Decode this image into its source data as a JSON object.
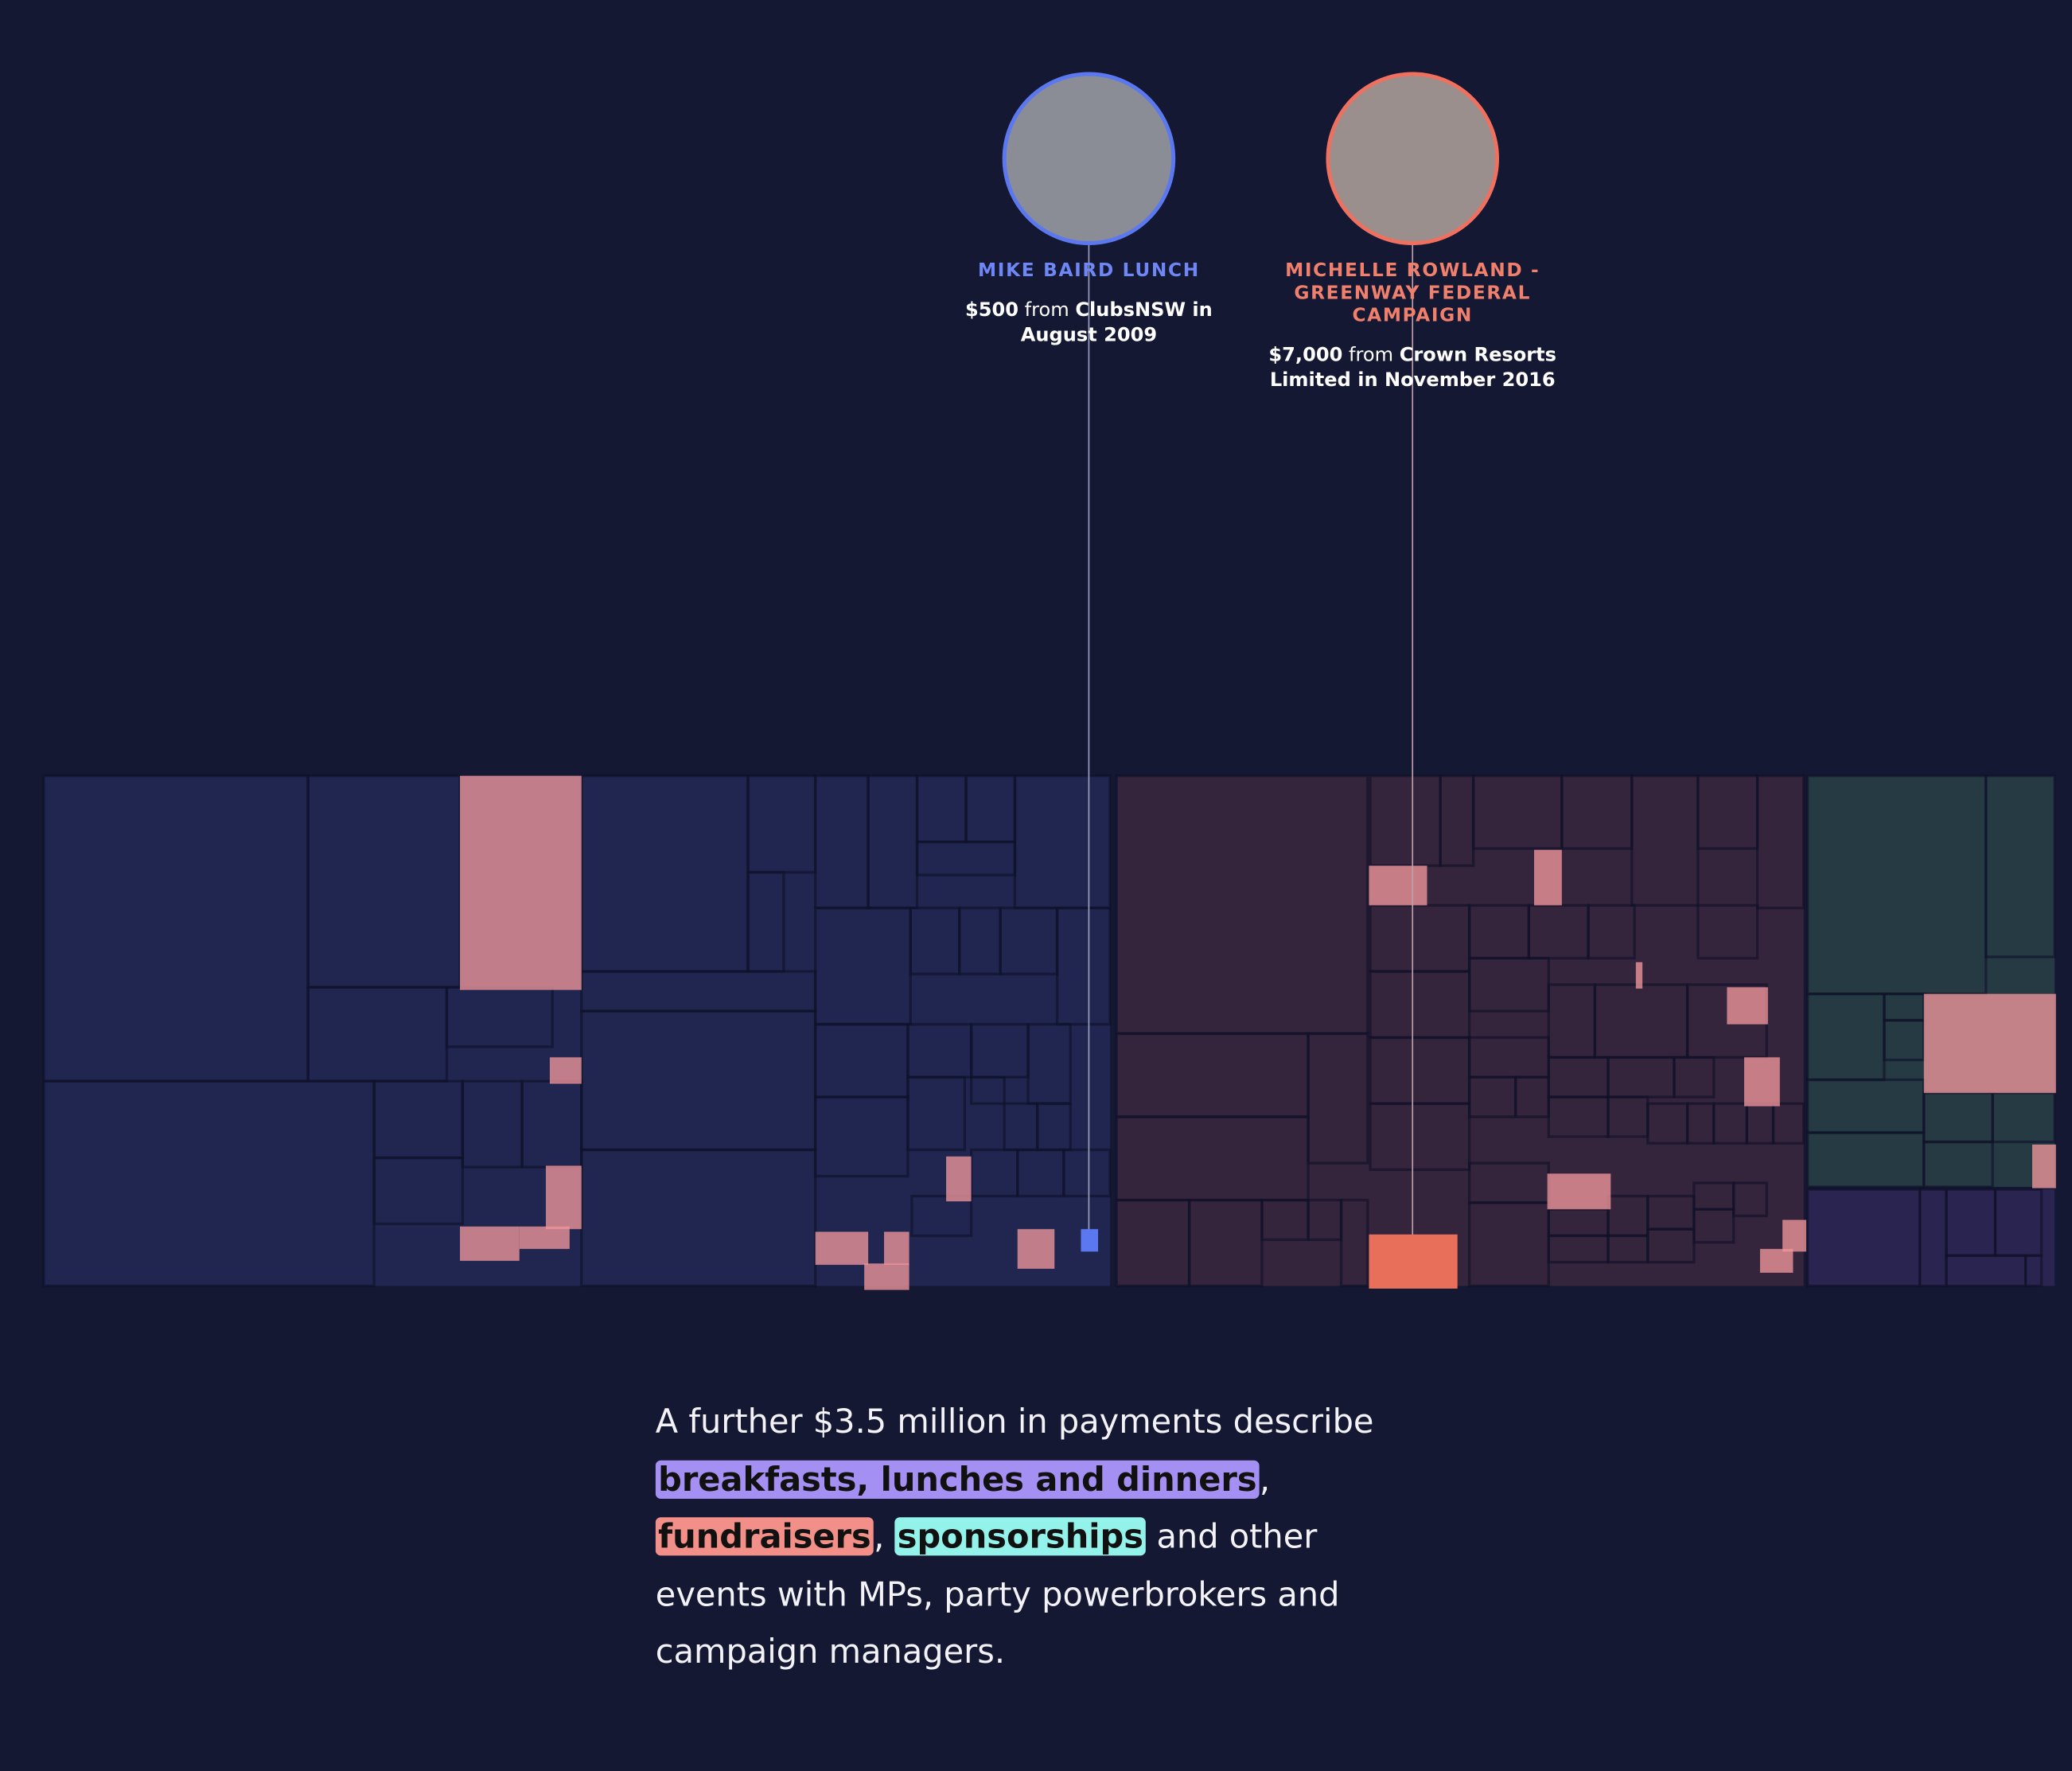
{
  "annotations": [
    {
      "title": "MIKE BAIRD LUNCH",
      "amount": "$500",
      "connector": "from",
      "source": "ClubsNSW in August 2009"
    },
    {
      "title": "MICHELLE ROWLAND - GREENWAY FEDERAL CAMPAIGN",
      "amount": "$7,000",
      "connector": "from",
      "source": "Crown Resorts Limited in November 2016"
    }
  ],
  "paragraph": [
    {
      "text": "A further $3.5 million in payments describe "
    },
    {
      "text": "breakfasts, lunches and dinners",
      "highlight": "#a48ff2"
    },
    {
      "text": ", "
    },
    {
      "text": "fundraisers",
      "highlight": "#f28f88"
    },
    {
      "text": ", "
    },
    {
      "text": "sponsorships",
      "highlight": "#93f2ea"
    },
    {
      "text": " and other events with MPs, party powerbrokers and campaign managers."
    }
  ]
}
